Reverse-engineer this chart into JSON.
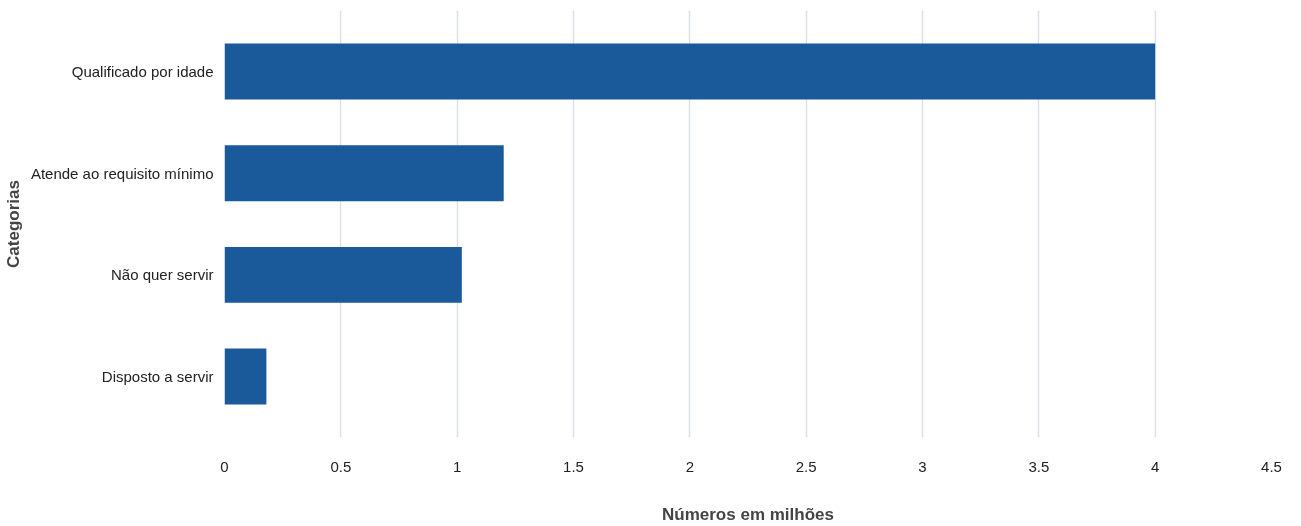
{
  "chart_data": {
    "type": "bar",
    "orientation": "horizontal",
    "xlabel": "Números em milhões",
    "ylabel": "Categorias",
    "categories": [
      "Qualificado por idade",
      "Atende ao requisito mínimo",
      "Não quer servir",
      "Disposto a servir"
    ],
    "values": [
      4.0,
      1.2,
      1.02,
      0.18
    ],
    "color": "#1a5a9a",
    "xlim": [
      0,
      4.5
    ],
    "xticks": [
      0,
      0.5,
      1,
      1.5,
      2,
      2.5,
      3,
      3.5,
      4,
      4.5
    ],
    "grid": "x"
  }
}
